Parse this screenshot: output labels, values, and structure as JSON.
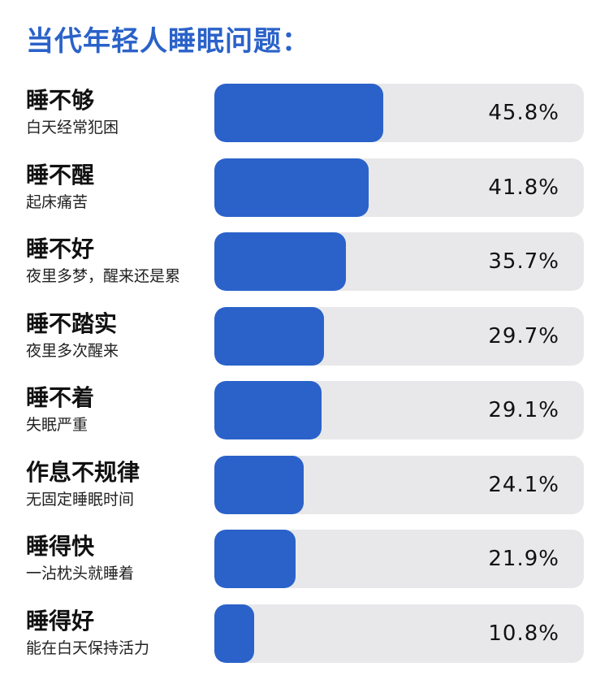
{
  "title": "当代年轻人睡眠问题：",
  "colors": {
    "accent": "#2a62c9",
    "track": "#e8e8ea"
  },
  "chart_data": {
    "type": "bar",
    "orientation": "horizontal",
    "title": "当代年轻人睡眠问题：",
    "xlim": [
      0,
      100
    ],
    "categories": [
      "睡不够",
      "睡不醒",
      "睡不好",
      "睡不踏实",
      "睡不着",
      "作息不规律",
      "睡得快",
      "睡得好"
    ],
    "subtitles": [
      "白天经常犯困",
      "起床痛苦",
      "夜里多梦，醒来还是累",
      "夜里多次醒来",
      "失眠严重",
      "无固定睡眠时间",
      "一沾枕头就睡着",
      "能在白天保持活力"
    ],
    "values": [
      45.8,
      41.8,
      35.7,
      29.7,
      29.1,
      24.1,
      21.9,
      10.8
    ],
    "value_labels": [
      "45.8%",
      "41.8%",
      "35.7%",
      "29.7%",
      "29.1%",
      "24.1%",
      "21.9%",
      "10.8%"
    ]
  }
}
